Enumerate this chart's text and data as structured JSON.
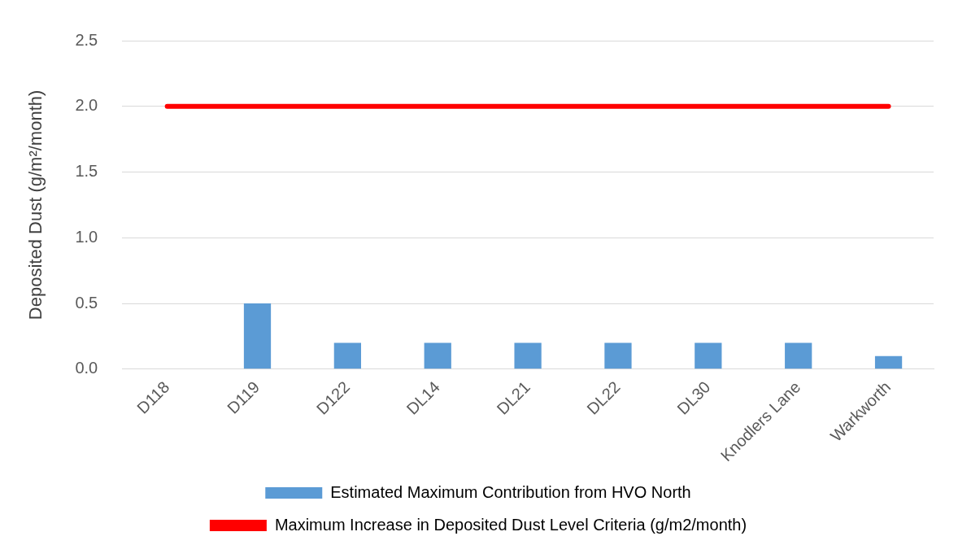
{
  "chart_data": {
    "type": "bar",
    "ylabel": "Deposited Dust (g/m²/month)",
    "categories": [
      "D118",
      "D119",
      "D122",
      "DL14",
      "DL21",
      "DL22",
      "DL30",
      "Knodlers Lane",
      "Warkworth"
    ],
    "series": [
      {
        "name": "Estimated Maximum Contribution from HVO North",
        "color": "#5b9bd5",
        "values": [
          0,
          0.5,
          0.2,
          0.2,
          0.2,
          0.2,
          0.2,
          0.2,
          0.1
        ]
      },
      {
        "name": "Maximum Increase in Deposited Dust Level Criteria (g/m2/month)",
        "type": "line",
        "color": "#ff0000",
        "values": [
          2,
          2,
          2,
          2,
          2,
          2,
          2,
          2,
          2
        ]
      }
    ],
    "ylim": [
      0,
      2.5
    ],
    "yticks": [
      {
        "value": 0,
        "label": "0.0"
      },
      {
        "value": 0.5,
        "label": "0.5"
      },
      {
        "value": 1,
        "label": "1.0"
      },
      {
        "value": 1.5,
        "label": "1.5"
      },
      {
        "value": 2,
        "label": "2.0"
      },
      {
        "value": 2.5,
        "label": "2.5"
      }
    ],
    "grid": "y",
    "legend": "bottom",
    "marker": "none",
    "line_style": "solid"
  }
}
